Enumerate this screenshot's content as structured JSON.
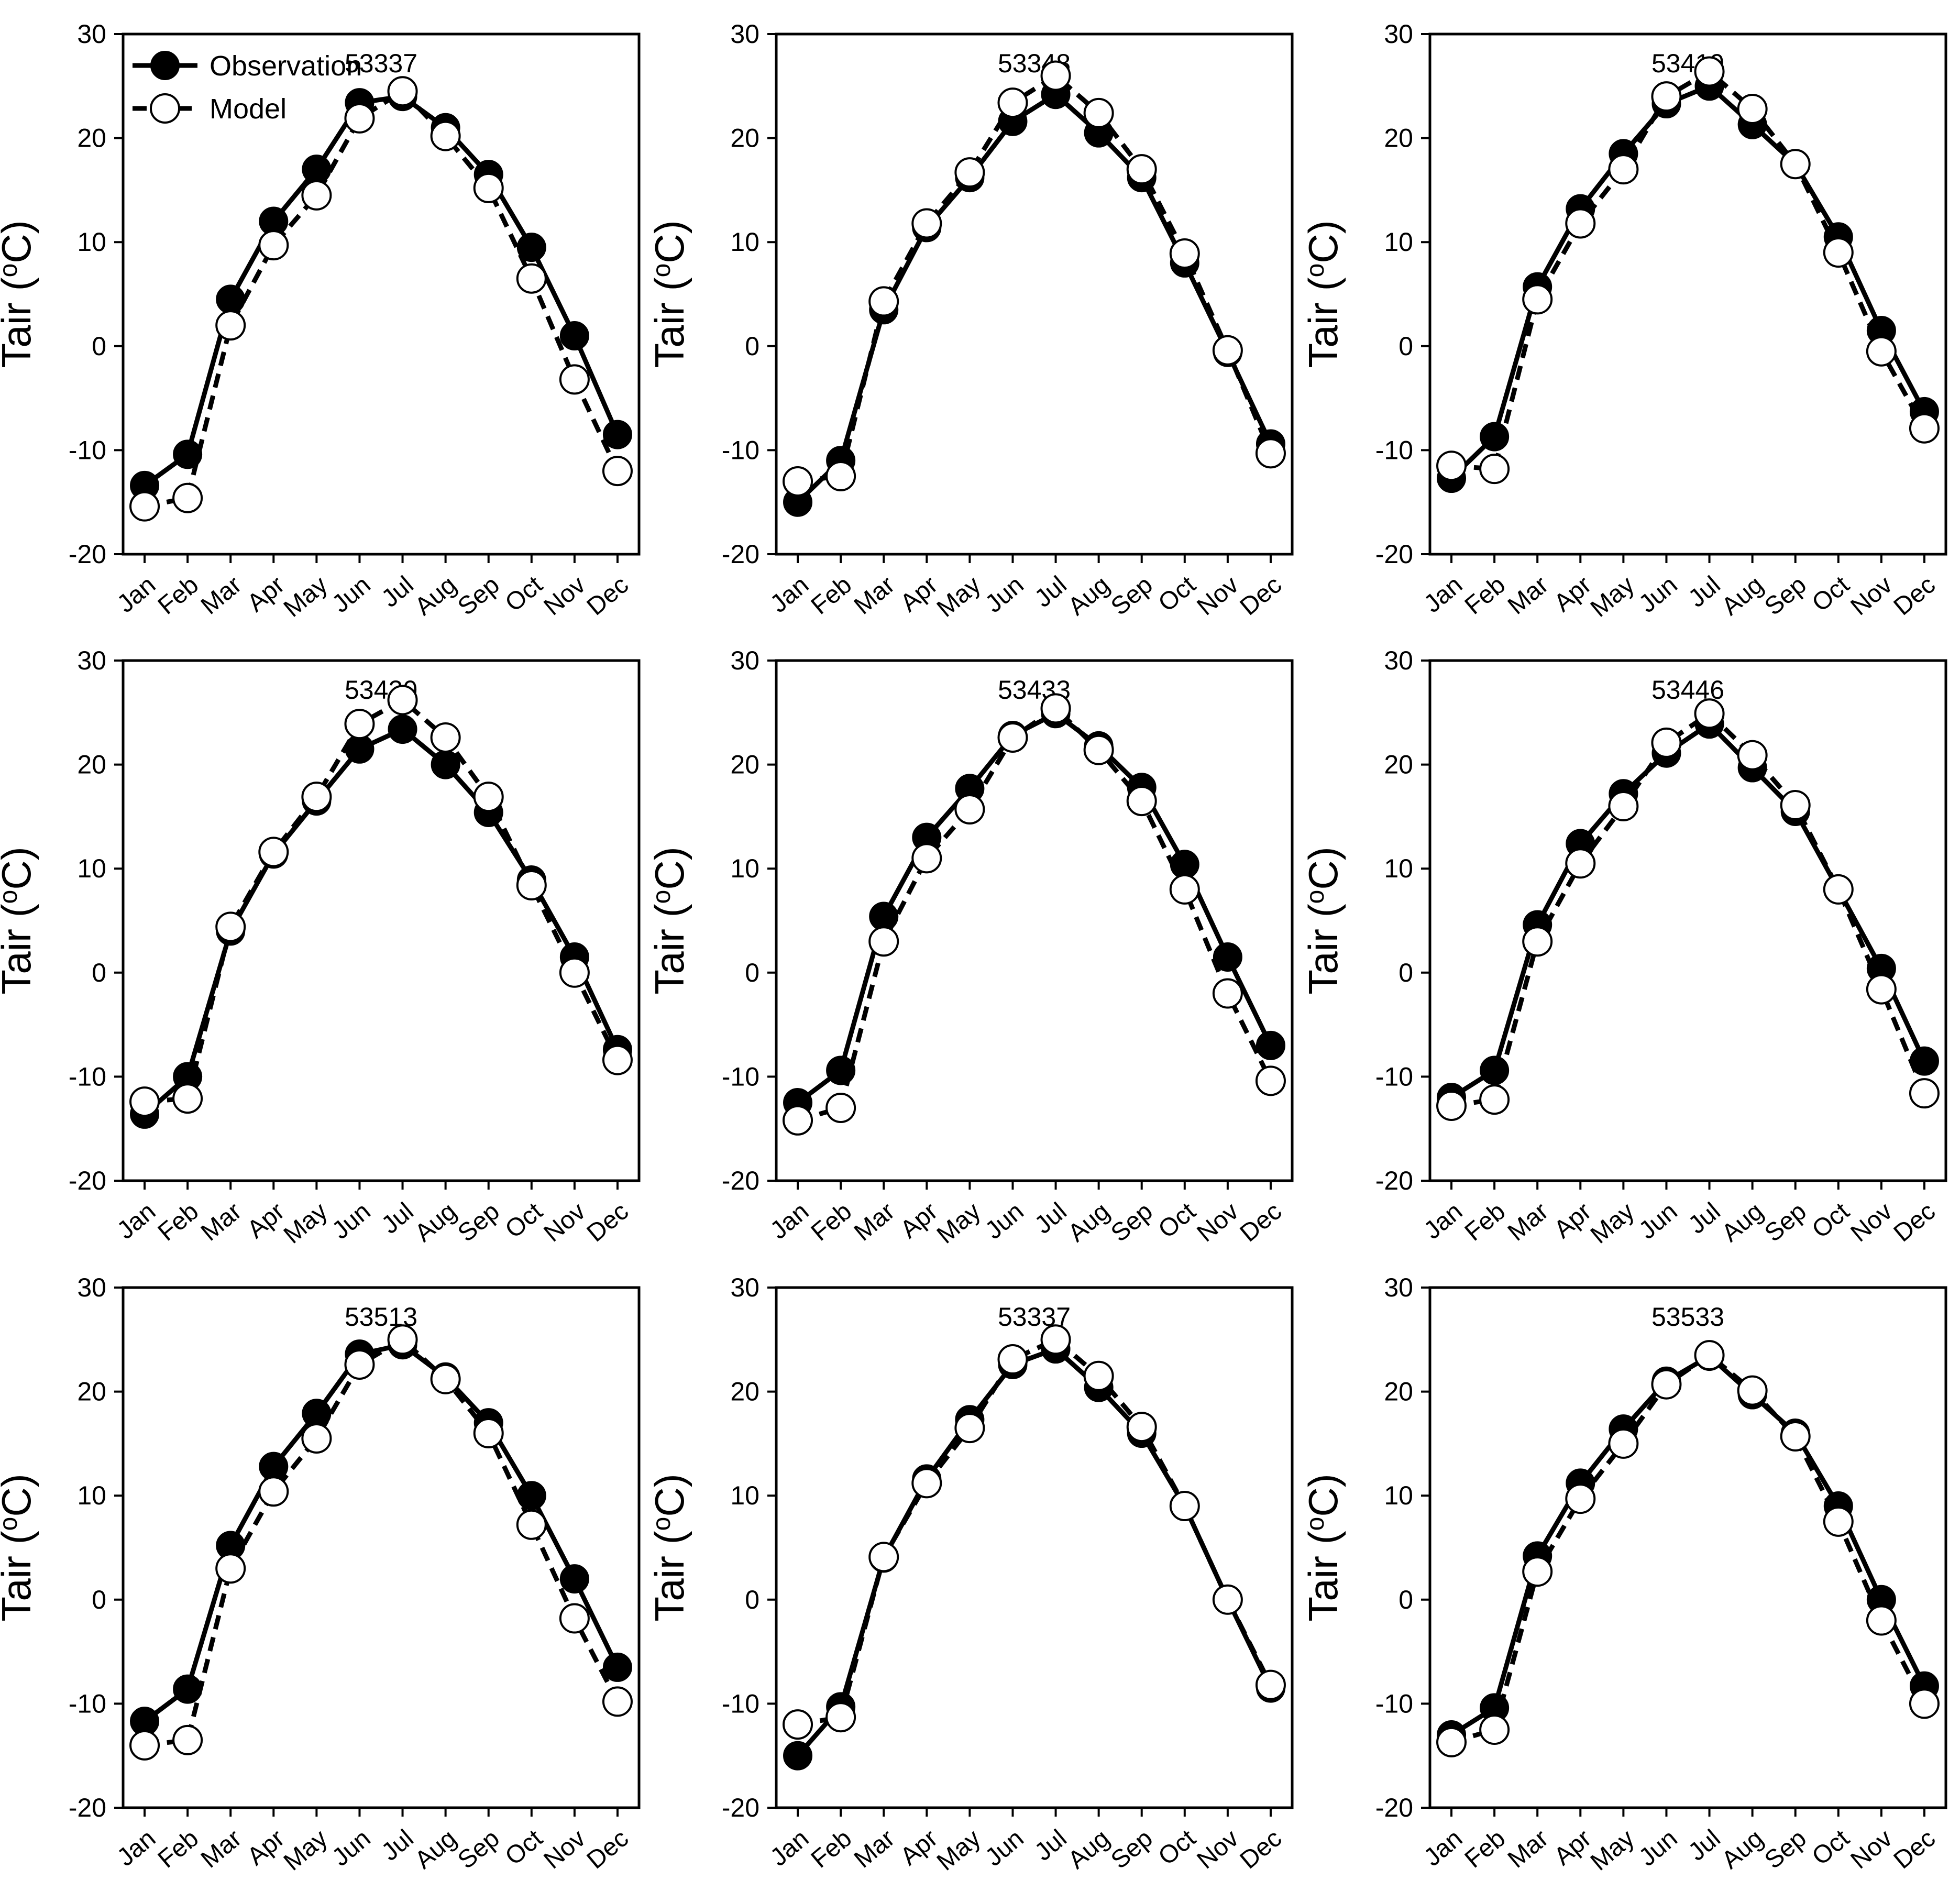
{
  "figure": {
    "title": "",
    "ylabel": {
      "prefix": "Tair (",
      "sup": "o",
      "suffix": "C)"
    },
    "ylim": [
      -20,
      30
    ],
    "yticks": [
      "30",
      "20",
      "10",
      "0",
      "-10",
      "-20"
    ],
    "ytick_values": [
      30,
      20,
      10,
      0,
      -10,
      -20
    ],
    "months": [
      "Jan",
      "Feb",
      "Mar",
      "Apr",
      "May",
      "Jun",
      "Jul",
      "Aug",
      "Sep",
      "Oct",
      "Nov",
      "Dec"
    ],
    "legend": {
      "position": "top-left-first-panel-only",
      "entries": [
        {
          "label": "Observation",
          "marker": "filled-circle",
          "line": "solid"
        },
        {
          "label": "Model",
          "marker": "open-circle",
          "line": "dashed"
        }
      ]
    },
    "colors": {
      "foreground": "#000000",
      "background": "#ffffff"
    },
    "grid": "off"
  },
  "chart_data": [
    {
      "type": "line",
      "title": "53337",
      "station": "53337",
      "categories": [
        "Jan",
        "Feb",
        "Mar",
        "Apr",
        "May",
        "Jun",
        "Jul",
        "Aug",
        "Sep",
        "Oct",
        "Nov",
        "Dec"
      ],
      "xlabel": "",
      "ylabel": "Tair (oC)",
      "ylim": [
        -20,
        30
      ],
      "legend": true,
      "series": [
        {
          "name": "Observation",
          "marker": "filled",
          "line": "solid",
          "values": [
            -13.4,
            -10.4,
            4.5,
            12.0,
            17.0,
            23.4,
            24.0,
            21.0,
            16.5,
            9.5,
            1.0,
            -8.5
          ]
        },
        {
          "name": "Model",
          "marker": "open",
          "line": "dashed",
          "values": [
            -15.4,
            -14.6,
            2.0,
            9.7,
            14.5,
            21.9,
            24.5,
            20.2,
            15.2,
            6.5,
            -3.2,
            -12.0
          ]
        }
      ]
    },
    {
      "type": "line",
      "title": "53348",
      "station": "53348",
      "categories": [
        "Jan",
        "Feb",
        "Mar",
        "Apr",
        "May",
        "Jun",
        "Jul",
        "Aug",
        "Sep",
        "Oct",
        "Nov",
        "Dec"
      ],
      "xlabel": "",
      "ylabel": "Tair (oC)",
      "ylim": [
        -20,
        30
      ],
      "legend": false,
      "series": [
        {
          "name": "Observation",
          "marker": "filled",
          "line": "solid",
          "values": [
            -15.0,
            -11.0,
            3.5,
            11.4,
            16.2,
            21.6,
            24.2,
            20.5,
            16.2,
            8.0,
            -0.6,
            -9.4
          ]
        },
        {
          "name": "Model",
          "marker": "open",
          "line": "dashed",
          "values": [
            -13.0,
            -12.5,
            4.3,
            11.8,
            16.7,
            23.4,
            26.0,
            22.4,
            17.0,
            8.9,
            -0.4,
            -10.3
          ]
        }
      ]
    },
    {
      "type": "line",
      "title": "53419",
      "station": "53419",
      "categories": [
        "Jan",
        "Feb",
        "Mar",
        "Apr",
        "May",
        "Jun",
        "Jul",
        "Aug",
        "Sep",
        "Oct",
        "Nov",
        "Dec"
      ],
      "xlabel": "",
      "ylabel": "Tair (oC)",
      "ylim": [
        -20,
        30
      ],
      "legend": false,
      "series": [
        {
          "name": "Observation",
          "marker": "filled",
          "line": "solid",
          "values": [
            -12.7,
            -8.7,
            5.7,
            13.2,
            18.5,
            23.3,
            25.0,
            21.3,
            17.5,
            10.5,
            1.5,
            -6.3
          ]
        },
        {
          "name": "Model",
          "marker": "open",
          "line": "dashed",
          "values": [
            -11.5,
            -11.8,
            4.5,
            11.8,
            17.0,
            24.0,
            26.4,
            22.8,
            17.5,
            9.0,
            -0.5,
            -7.9
          ]
        }
      ]
    },
    {
      "type": "line",
      "title": "53420",
      "station": "53420",
      "categories": [
        "Jan",
        "Feb",
        "Mar",
        "Apr",
        "May",
        "Jun",
        "Jul",
        "Aug",
        "Sep",
        "Oct",
        "Nov",
        "Dec"
      ],
      "xlabel": "",
      "ylabel": "Tair (oC)",
      "ylim": [
        -20,
        30
      ],
      "legend": false,
      "series": [
        {
          "name": "Observation",
          "marker": "filled",
          "line": "solid",
          "values": [
            -13.6,
            -10.0,
            4.0,
            11.4,
            16.5,
            21.5,
            23.4,
            20.0,
            15.4,
            8.9,
            1.5,
            -7.4
          ]
        },
        {
          "name": "Model",
          "marker": "open",
          "line": "dashed",
          "values": [
            -12.4,
            -12.1,
            4.4,
            11.6,
            16.9,
            23.9,
            26.2,
            22.6,
            16.9,
            8.4,
            0.0,
            -8.4
          ]
        }
      ]
    },
    {
      "type": "line",
      "title": "53433",
      "station": "53433",
      "categories": [
        "Jan",
        "Feb",
        "Mar",
        "Apr",
        "May",
        "Jun",
        "Jul",
        "Aug",
        "Sep",
        "Oct",
        "Nov",
        "Dec"
      ],
      "xlabel": "",
      "ylabel": "Tair (oC)",
      "ylim": [
        -20,
        30
      ],
      "legend": false,
      "series": [
        {
          "name": "Observation",
          "marker": "filled",
          "line": "solid",
          "values": [
            -12.5,
            -9.4,
            5.4,
            13.0,
            17.7,
            22.8,
            24.9,
            21.8,
            17.8,
            10.4,
            1.5,
            -7.0
          ]
        },
        {
          "name": "Model",
          "marker": "open",
          "line": "dashed",
          "values": [
            -14.2,
            -13.0,
            3.0,
            11.0,
            15.7,
            22.6,
            25.4,
            21.4,
            16.5,
            8.0,
            -2.0,
            -10.4
          ]
        }
      ]
    },
    {
      "type": "line",
      "title": "53446",
      "station": "53446",
      "categories": [
        "Jan",
        "Feb",
        "Mar",
        "Apr",
        "May",
        "Jun",
        "Jul",
        "Aug",
        "Sep",
        "Oct",
        "Nov",
        "Dec"
      ],
      "xlabel": "",
      "ylabel": "Tair (oC)",
      "ylim": [
        -20,
        30
      ],
      "legend": false,
      "series": [
        {
          "name": "Observation",
          "marker": "filled",
          "line": "solid",
          "values": [
            -12.0,
            -9.4,
            4.6,
            12.4,
            17.2,
            21.1,
            23.9,
            19.7,
            15.5,
            8.0,
            0.4,
            -8.5
          ]
        },
        {
          "name": "Model",
          "marker": "open",
          "line": "dashed",
          "values": [
            -12.8,
            -12.2,
            3.0,
            10.5,
            16.0,
            22.1,
            24.9,
            20.9,
            16.1,
            8.0,
            -1.6,
            -11.6
          ]
        }
      ]
    },
    {
      "type": "line",
      "title": "53513",
      "station": "53513",
      "categories": [
        "Jan",
        "Feb",
        "Mar",
        "Apr",
        "May",
        "Jun",
        "Jul",
        "Aug",
        "Sep",
        "Oct",
        "Nov",
        "Dec"
      ],
      "xlabel": "",
      "ylabel": "Tair (oC)",
      "ylim": [
        -20,
        30
      ],
      "legend": false,
      "series": [
        {
          "name": "Observation",
          "marker": "filled",
          "line": "solid",
          "values": [
            -11.7,
            -8.6,
            5.2,
            12.8,
            17.9,
            23.6,
            24.5,
            21.4,
            17.0,
            10.0,
            2.0,
            -6.5
          ]
        },
        {
          "name": "Model",
          "marker": "open",
          "line": "dashed",
          "values": [
            -14.0,
            -13.5,
            3.0,
            10.4,
            15.5,
            22.6,
            25.0,
            21.2,
            16.0,
            7.2,
            -1.8,
            -9.8
          ]
        }
      ]
    },
    {
      "type": "line",
      "title": "53337",
      "station": "53337",
      "categories": [
        "Jan",
        "Feb",
        "Mar",
        "Apr",
        "May",
        "Jun",
        "Jul",
        "Aug",
        "Sep",
        "Oct",
        "Nov",
        "Dec"
      ],
      "xlabel": "",
      "ylabel": "Tair (oC)",
      "ylim": [
        -20,
        30
      ],
      "legend": false,
      "series": [
        {
          "name": "Observation",
          "marker": "filled",
          "line": "solid",
          "values": [
            -15.0,
            -10.3,
            4.0,
            11.6,
            17.3,
            22.6,
            24.1,
            20.4,
            16.0,
            9.0,
            0.0,
            -8.5
          ]
        },
        {
          "name": "Model",
          "marker": "open",
          "line": "dashed",
          "values": [
            -12.0,
            -11.3,
            4.1,
            11.2,
            16.5,
            23.1,
            25.0,
            21.5,
            16.6,
            9.0,
            0.0,
            -8.2
          ]
        }
      ]
    },
    {
      "type": "line",
      "title": "53533",
      "station": "53533",
      "categories": [
        "Jan",
        "Feb",
        "Mar",
        "Apr",
        "May",
        "Jun",
        "Jul",
        "Aug",
        "Sep",
        "Oct",
        "Nov",
        "Dec"
      ],
      "xlabel": "",
      "ylabel": "Tair (oC)",
      "ylim": [
        -20,
        30
      ],
      "legend": false,
      "series": [
        {
          "name": "Observation",
          "marker": "filled",
          "line": "solid",
          "values": [
            -13.0,
            -10.4,
            4.2,
            11.2,
            16.4,
            21.0,
            23.4,
            19.7,
            16.0,
            9.0,
            0.0,
            -8.3
          ]
        },
        {
          "name": "Model",
          "marker": "open",
          "line": "dashed",
          "values": [
            -13.7,
            -12.5,
            2.7,
            9.7,
            15.0,
            20.7,
            23.5,
            20.1,
            15.7,
            7.5,
            -2.0,
            -10.0
          ]
        }
      ]
    }
  ]
}
